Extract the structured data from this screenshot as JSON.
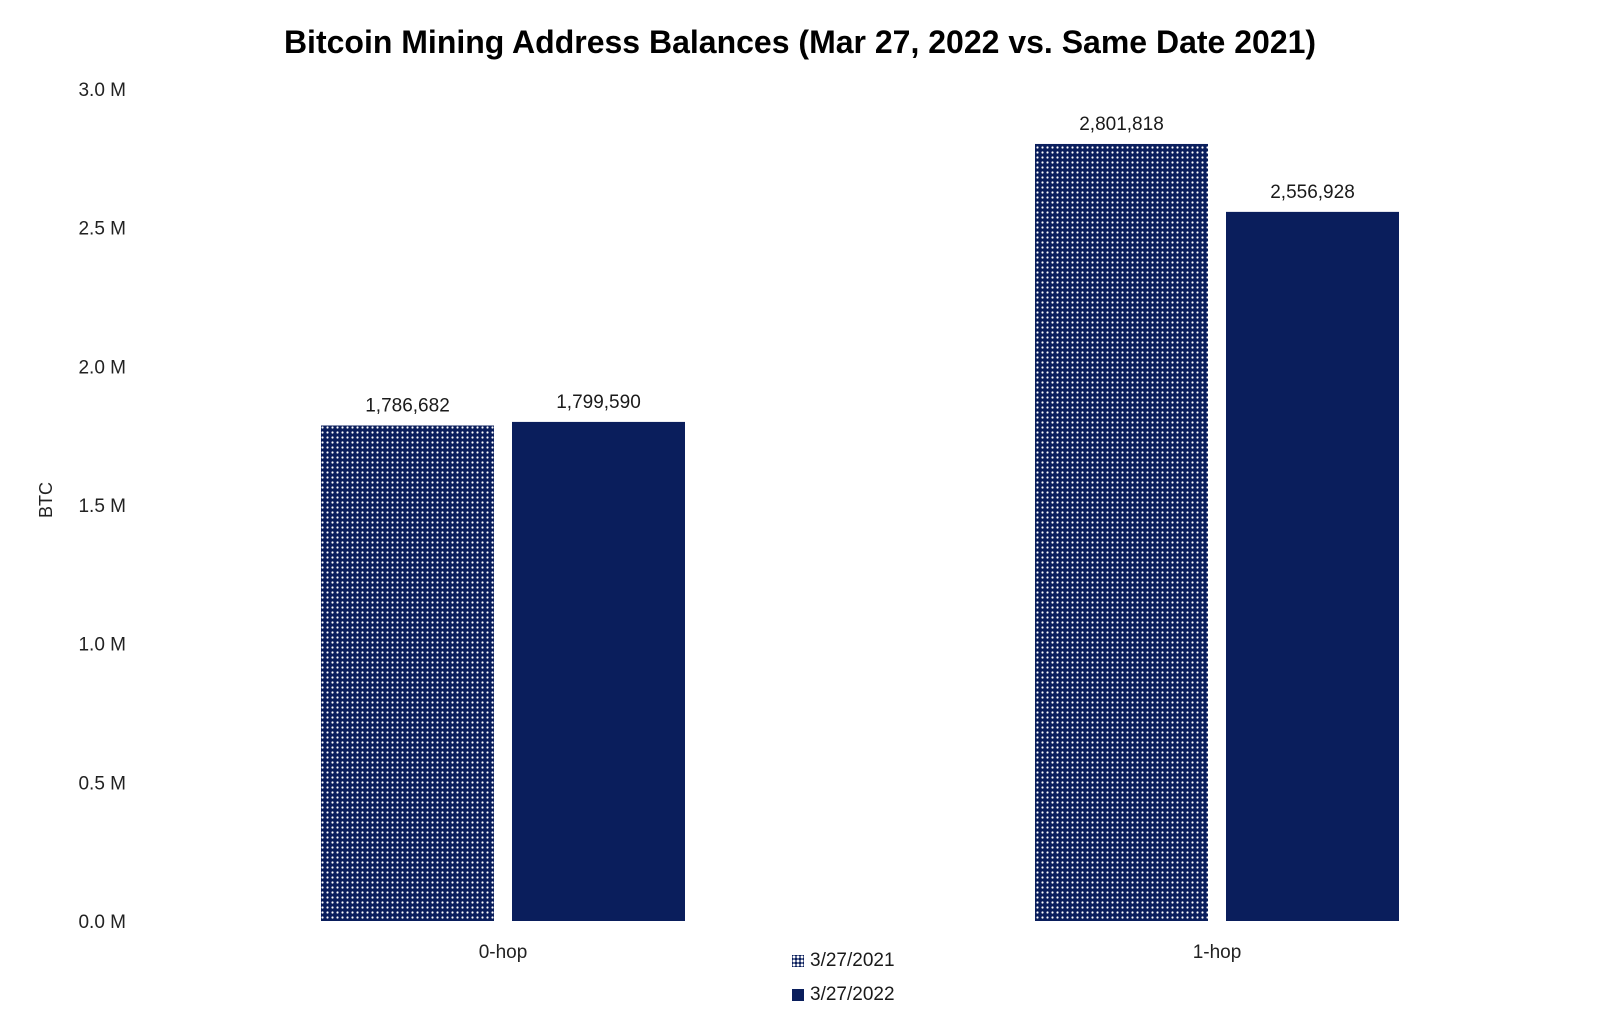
{
  "chart_data": {
    "type": "bar",
    "title": "Bitcoin Mining Address Balances (Mar 27, 2022 vs. Same Date 2021)",
    "ylabel": "BTC",
    "xlabel": "",
    "categories": [
      "0-hop",
      "1-hop"
    ],
    "series": [
      {
        "name": "3/27/2021",
        "values": [
          1786682,
          2801818
        ],
        "labels": [
          "1,786,682",
          "2,801,818"
        ],
        "pattern": "dotted",
        "color": "#0a1e5c"
      },
      {
        "name": "3/27/2022",
        "values": [
          1799590,
          2556928
        ],
        "labels": [
          "1,799,590",
          "2,556,928"
        ],
        "pattern": "solid",
        "color": "#0a1e5c"
      }
    ],
    "ylim": [
      0,
      3000000
    ],
    "yticks": [
      {
        "value": 0,
        "label": "0.0 M"
      },
      {
        "value": 500000,
        "label": "0.5 M"
      },
      {
        "value": 1000000,
        "label": "1.0 M"
      },
      {
        "value": 1500000,
        "label": "1.5 M"
      },
      {
        "value": 2000000,
        "label": "2.0 M"
      },
      {
        "value": 2500000,
        "label": "2.5 M"
      },
      {
        "value": 3000000,
        "label": "3.0 M"
      }
    ],
    "grid": false,
    "legend_position": "bottom-center"
  }
}
